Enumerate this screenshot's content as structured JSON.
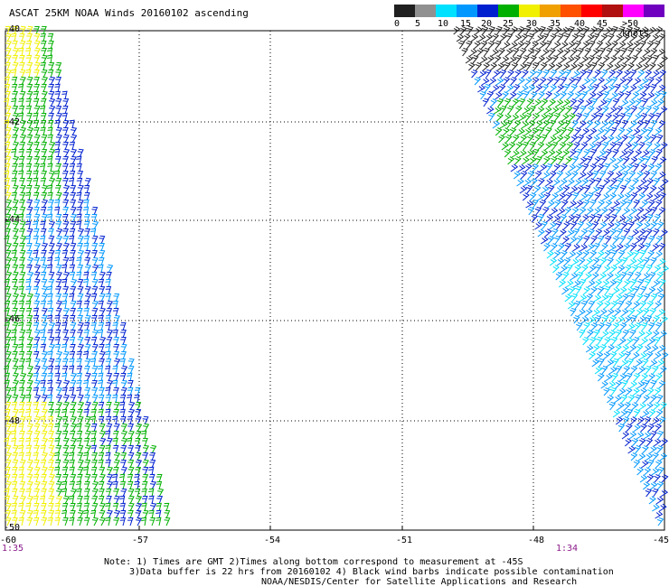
{
  "title": "ASCAT 25KM NOAA Winds 20160102 ascending",
  "legend": {
    "labels": [
      "0",
      "5",
      "10",
      "15",
      "20",
      "25",
      "30",
      "35",
      "40",
      "45",
      ">50 knots"
    ],
    "colors": [
      "#202020",
      "#909090",
      "#00e0ff",
      "#0098ff",
      "#0020d0",
      "#00b000",
      "#f0f000",
      "#f0a000",
      "#ff5000",
      "#ff0000",
      "#b01010",
      "#ff00ff",
      "#7000c0"
    ]
  },
  "lat_labels": [
    "-40",
    "-42",
    "-44",
    "-46",
    "-48",
    "-50"
  ],
  "lon_labels": [
    "-60",
    "-57",
    "-54",
    "-51",
    "-48",
    "-45"
  ],
  "time_left": "1:35",
  "time_right": "1:34",
  "notes": [
    "Note: 1) Times are GMT 2)Times along bottom correspond to measurement at -45S",
    "3)Data buffer is 22 hrs from 20160102 4) Black wind barbs indicate possible contamination",
    "NOAA/NESDIS/Center for Satellite Applications and Research"
  ],
  "map": {
    "lon_range": [
      -60,
      -45
    ],
    "lat_range": [
      -50,
      -40
    ],
    "grid": true
  },
  "swaths": [
    {
      "name": "west-swath",
      "speed_colors": [
        "#f0f000",
        "#00b000",
        "#0020d0",
        "#0098ff"
      ]
    },
    {
      "name": "east-swath",
      "speed_colors": [
        "#202020",
        "#00e0ff",
        "#0098ff",
        "#0020d0",
        "#00b000"
      ]
    }
  ]
}
